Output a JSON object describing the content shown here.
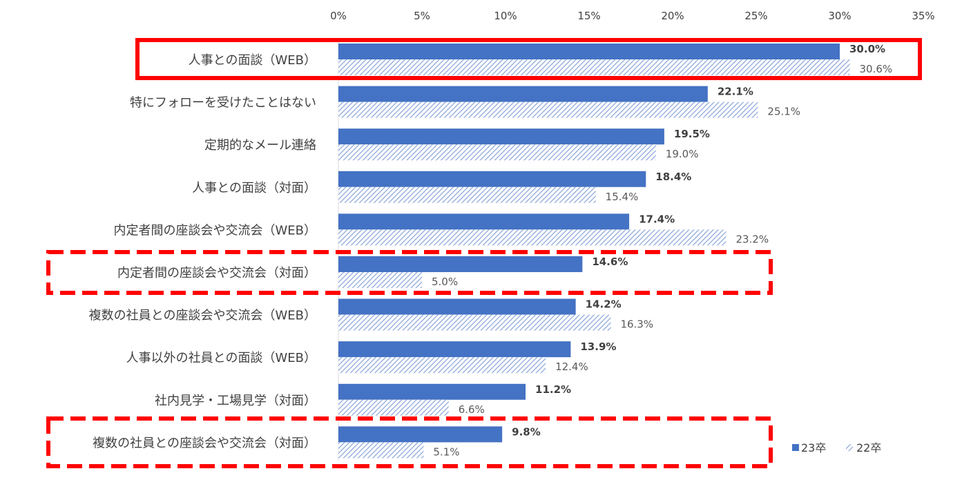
{
  "chart_data": {
    "type": "bar",
    "orientation": "horizontal",
    "xlim": [
      0,
      35
    ],
    "x_ticks": [
      "0%",
      "5%",
      "10%",
      "15%",
      "20%",
      "25%",
      "30%",
      "35%"
    ],
    "x_tick_values": [
      0,
      5,
      10,
      15,
      20,
      25,
      30,
      35
    ],
    "axis_position": "top",
    "categories": [
      "人事との面談（WEB）",
      "特にフォローを受けたことはない",
      "定期的なメール連絡",
      "人事との面談（対面）",
      "内定者間の座談会や交流会（WEB）",
      "内定者間の座談会や交流会（対面）",
      "複数の社員との座談会や交流会（WEB）",
      "人事以外の社員との面談（WEB）",
      "社内見学・工場見学（対面）",
      "複数の社員との座談会や交流会（対面）"
    ],
    "series": [
      {
        "name": "23卒",
        "values": [
          30.0,
          22.1,
          19.5,
          18.4,
          17.4,
          14.6,
          14.2,
          13.9,
          11.2,
          9.8
        ],
        "labels": [
          "30.0%",
          "22.1%",
          "19.5%",
          "18.4%",
          "17.4%",
          "14.6%",
          "14.2%",
          "13.9%",
          "11.2%",
          "9.8%"
        ],
        "color": "#4472C4",
        "pattern": "solid"
      },
      {
        "name": "22卒",
        "values": [
          30.6,
          25.1,
          19.0,
          15.4,
          23.2,
          5.0,
          16.3,
          12.4,
          6.6,
          5.1
        ],
        "labels": [
          "30.6%",
          "25.1%",
          "19.0%",
          "15.4%",
          "23.2%",
          "5.0%",
          "16.3%",
          "12.4%",
          "6.6%",
          "5.1%"
        ],
        "color": "#8EA9DB",
        "pattern": "diagonal-hatch"
      }
    ],
    "legend": "bottom-right",
    "highlights": [
      {
        "category_index": 0,
        "style": "solid",
        "color": "#FF0000"
      },
      {
        "category_index": 5,
        "style": "dashed",
        "color": "#FF0000"
      },
      {
        "category_index": 9,
        "style": "dashed",
        "color": "#FF0000"
      }
    ]
  }
}
